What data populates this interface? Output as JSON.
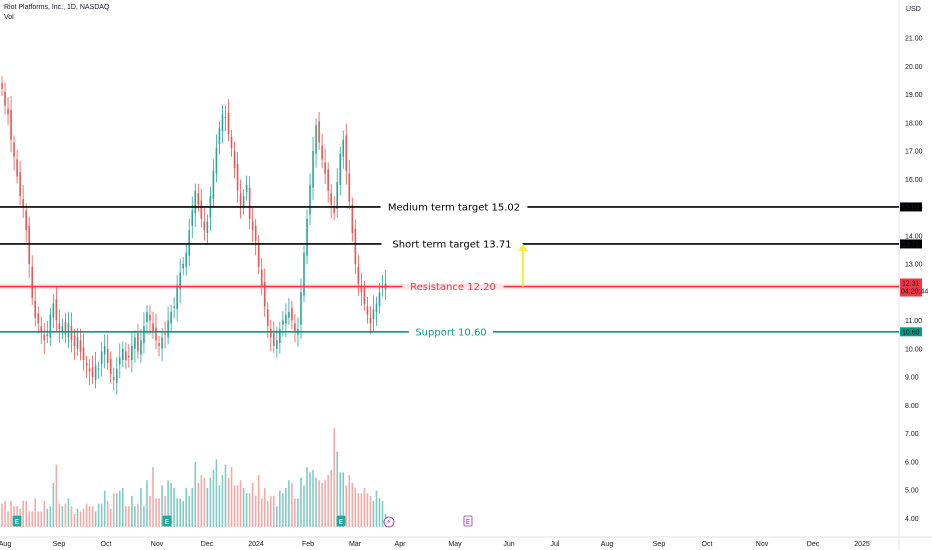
{
  "header": {
    "title": "Riot Platforms, Inc., 1D, NASDAQ",
    "volume_label": "Vol"
  },
  "currency": "USD",
  "colors": {
    "up": "#26a69a",
    "down": "#ef5350",
    "vol_up": "#80cbc4",
    "vol_down": "#f7a9a7",
    "black": "#000000",
    "red": "#f23645",
    "green": "#089981",
    "arrow": "#ffeb3b"
  },
  "chart_data": {
    "type": "candlestick",
    "title": "Riot Platforms, Inc., 1D, NASDAQ",
    "ylim": [
      3.6,
      22.2
    ],
    "y_ticks": [
      "21.00",
      "20.00",
      "19.00",
      "18.00",
      "17.00",
      "16.00",
      "15.00",
      "14.00",
      "13.00",
      "12.00",
      "11.00",
      "10.00",
      "9.00",
      "8.00",
      "7.00",
      "6.00",
      "5.00",
      "4.00"
    ],
    "x_ticks": [
      "Aug",
      "Sep",
      "Oct",
      "Nov",
      "Dec",
      "2024",
      "Feb",
      "Mar",
      "Apr",
      "May",
      "Jun",
      "Jul",
      "Aug",
      "Sep",
      "Oct",
      "Nov",
      "Dec",
      "2025"
    ],
    "levels": [
      {
        "name": "Medium term target",
        "value": 15.02,
        "label": "Medium term target 15.02",
        "tag": "15.02",
        "color": "black"
      },
      {
        "name": "Short term target",
        "value": 13.71,
        "label": "Short term target 13.71",
        "tag": "13.71",
        "color": "black"
      },
      {
        "name": "Resistance",
        "value": 12.2,
        "label": "Resistance 12.20",
        "tag": "12.20",
        "color": "red"
      },
      {
        "name": "Support",
        "value": 10.6,
        "label": "Support 10.60",
        "tag": "10.60",
        "color": "green"
      }
    ],
    "last_price": {
      "value": 12.31,
      "label": "12.31",
      "countdown": "04:20:44"
    },
    "projection": {
      "from": 12.2,
      "to": 13.71,
      "month": "Jun"
    },
    "markers": [
      {
        "month": "Aug",
        "symbol": "E"
      },
      {
        "month": "Nov",
        "symbol": "E"
      },
      {
        "month": "Feb",
        "symbol": "E"
      },
      {
        "month": "Mar",
        "symbol": "⚡"
      },
      {
        "month": "May",
        "symbol": "E"
      }
    ],
    "price_close": [
      19.2,
      18.6,
      18.3,
      17.4,
      16.8,
      16.1,
      15.4,
      15.0,
      14.2,
      13.0,
      11.8,
      11.1,
      10.9,
      10.6,
      10.3,
      10.5,
      11.2,
      11.6,
      11.0,
      10.7,
      10.8,
      10.5,
      10.9,
      10.3,
      10.1,
      10.4,
      9.9,
      9.6,
      9.4,
      9.2,
      9.0,
      9.4,
      9.3,
      9.9,
      10.1,
      9.5,
      9.1,
      8.9,
      9.3,
      9.7,
      10.0,
      9.6,
      9.7,
      10.1,
      10.4,
      9.9,
      10.3,
      10.8,
      11.3,
      11.0,
      10.6,
      10.3,
      10.1,
      10.4,
      10.5,
      11.0,
      11.3,
      11.5,
      12.2,
      12.7,
      13.0,
      13.4,
      14.2,
      14.9,
      15.6,
      15.1,
      14.6,
      14.2,
      14.5,
      15.4,
      16.3,
      17.1,
      17.8,
      18.3,
      18.2,
      17.6,
      17.1,
      16.4,
      15.6,
      15.1,
      15.4,
      15.8,
      14.6,
      14.2,
      13.8,
      12.9,
      12.2,
      11.5,
      10.8,
      10.4,
      10.1,
      10.3,
      10.7,
      11.0,
      11.2,
      11.3,
      11.0,
      10.6,
      10.7,
      12.0,
      13.4,
      14.6,
      15.8,
      17.0,
      17.9,
      17.3,
      16.7,
      16.2,
      15.6,
      15.1,
      14.8,
      15.9,
      16.9,
      17.4,
      16.3,
      15.2,
      14.1,
      13.0,
      12.3,
      12.0,
      11.6,
      11.2,
      10.9,
      11.4,
      11.6,
      12.0,
      12.2,
      12.31
    ],
    "volume": [
      4.9,
      5.0,
      4.6,
      5.0,
      4.8,
      4.8,
      4.7,
      5.0,
      5.0,
      4.6,
      4.6,
      5.1,
      4.6,
      4.6,
      5.0,
      4.7,
      4.8,
      5.7,
      6.4,
      4.9,
      4.8,
      4.9,
      5.1,
      4.8,
      4.5,
      4.7,
      4.6,
      4.7,
      4.9,
      4.8,
      4.8,
      4.6,
      4.9,
      4.9,
      5.4,
      5.0,
      4.7,
      5.3,
      5.3,
      5.4,
      5.5,
      4.8,
      4.8,
      5.2,
      4.8,
      4.9,
      5.5,
      4.8,
      5.8,
      5.2,
      6.3,
      5.1,
      5.1,
      5.6,
      5.2,
      5.8,
      5.7,
      5.5,
      5.1,
      5.1,
      5.0,
      5.5,
      5.2,
      5.5,
      6.5,
      5.7,
      6.0,
      5.9,
      5.5,
      5.9,
      6.2,
      6.6,
      5.6,
      6.0,
      6.4,
      5.9,
      6.3,
      5.6,
      5.6,
      5.8,
      5.5,
      5.3,
      5.3,
      5.7,
      5.2,
      6.0,
      5.1,
      5.5,
      5.0,
      5.2,
      5.2,
      4.8,
      5.4,
      5.3,
      5.5,
      5.8,
      5.7,
      5.1,
      5.1,
      5.9,
      5.6,
      6.3,
      6.1,
      6.2,
      5.9,
      5.8,
      5.7,
      5.8,
      6.0,
      6.2,
      7.8,
      6.9,
      6.1,
      6.1,
      5.6,
      6.0,
      5.7,
      5.5,
      5.3,
      5.3,
      5.5,
      5.3,
      5.2,
      5.0,
      5.4,
      5.1,
      5.0,
      4.5
    ]
  }
}
